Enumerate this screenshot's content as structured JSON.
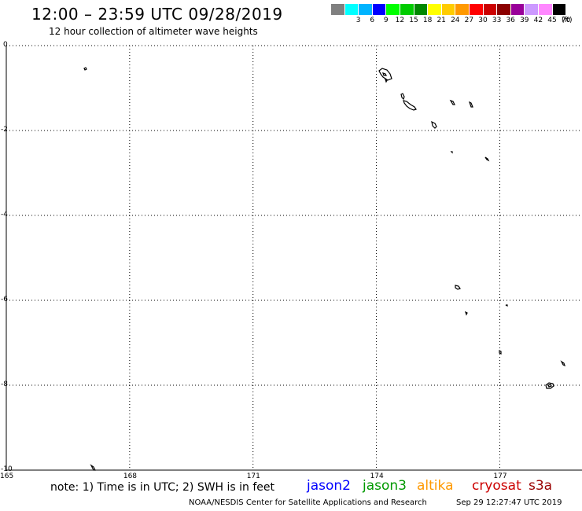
{
  "header": {
    "title": "12:00 – 23:59 UTC 09/28/2019",
    "subtitle": "12 hour collection of altimeter wave heights"
  },
  "legend": {
    "unit": "(ft)",
    "bins": [
      {
        "label": "",
        "color": "#808080"
      },
      {
        "label": "3",
        "color": "#00ffff"
      },
      {
        "label": "6",
        "color": "#00b4ff"
      },
      {
        "label": "9",
        "color": "#0000ff"
      },
      {
        "label": "12",
        "color": "#00ff00"
      },
      {
        "label": "15",
        "color": "#00cc00"
      },
      {
        "label": "18",
        "color": "#008800"
      },
      {
        "label": "21",
        "color": "#ffff00"
      },
      {
        "label": "24",
        "color": "#ffcc00"
      },
      {
        "label": "27",
        "color": "#ff9900"
      },
      {
        "label": "30",
        "color": "#ff0000"
      },
      {
        "label": "33",
        "color": "#cc0000"
      },
      {
        "label": "36",
        "color": "#8b0000"
      },
      {
        "label": "39",
        "color": "#990099"
      },
      {
        "label": "42",
        "color": "#cc99ff"
      },
      {
        "label": "45",
        "color": "#ff88ff"
      },
      {
        "label": "70",
        "color": "#000000"
      }
    ]
  },
  "map": {
    "lon_ticks": [
      "165",
      "168",
      "171",
      "174",
      "177"
    ],
    "lat_ticks": [
      "0",
      "-2",
      "-4",
      "-6",
      "-8",
      "-10"
    ],
    "lon_range": [
      165,
      179
    ],
    "lat_range": [
      -10,
      0
    ]
  },
  "footer": {
    "note": "note: 1) Time is in UTC; 2) SWH is in feet",
    "satellites": [
      {
        "name": "jason2",
        "color": "#0000ff"
      },
      {
        "name": "jason3",
        "color": "#009900"
      },
      {
        "name": "altika",
        "color": "#ff9900"
      },
      {
        "name": "cryosat",
        "color": "#cc0000"
      },
      {
        "name": "s3a",
        "color": "#990000"
      }
    ],
    "credit": "NOAA/NESDIS Center for Satellite Applications and Research",
    "timestamp": "Sep 29 12:27:47 UTC 2019"
  }
}
